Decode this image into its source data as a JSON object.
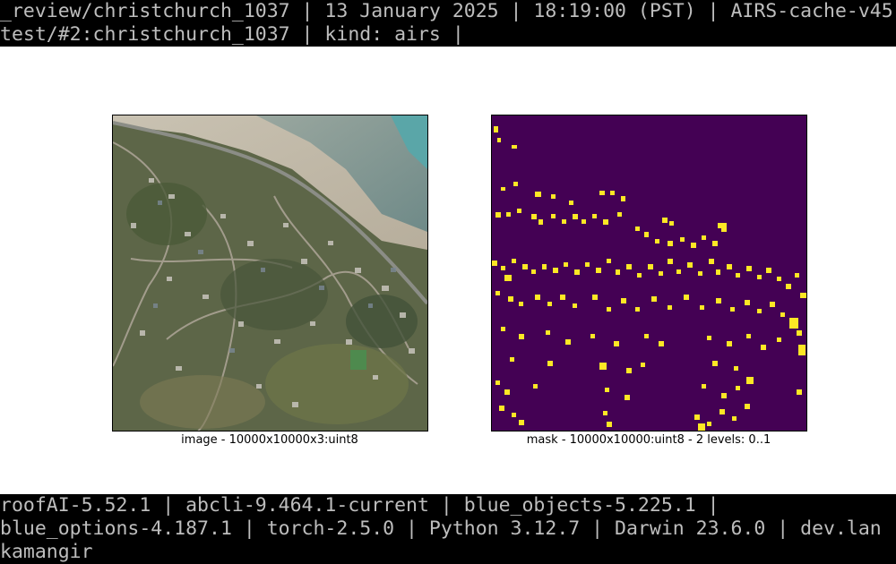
{
  "header": {
    "line1": "_review/christchurch_1037 | 13 January 2025 | 18:19:00 (PST) | AIRS-cache-v45 |",
    "line2": "test/#2:christchurch_1037 | kind: airs |"
  },
  "footer": {
    "line1": "roofAI-5.52.1 | abcli-9.464.1-current | blue_objects-5.225.1 |",
    "line2": "blue_options-4.187.1 | torch-2.5.0 | Python 3.12.7 | Darwin 23.6.0 | dev.lan |",
    "line3": "kamangir"
  },
  "image_panel": {
    "caption": "image - 10000x10000x3:uint8",
    "icon": "aerial-photo"
  },
  "mask_panel": {
    "caption": "mask - 10000x10000:uint8 - 2 levels: 0..1",
    "background_color": "#440154",
    "foreground_color": "#fde725"
  }
}
